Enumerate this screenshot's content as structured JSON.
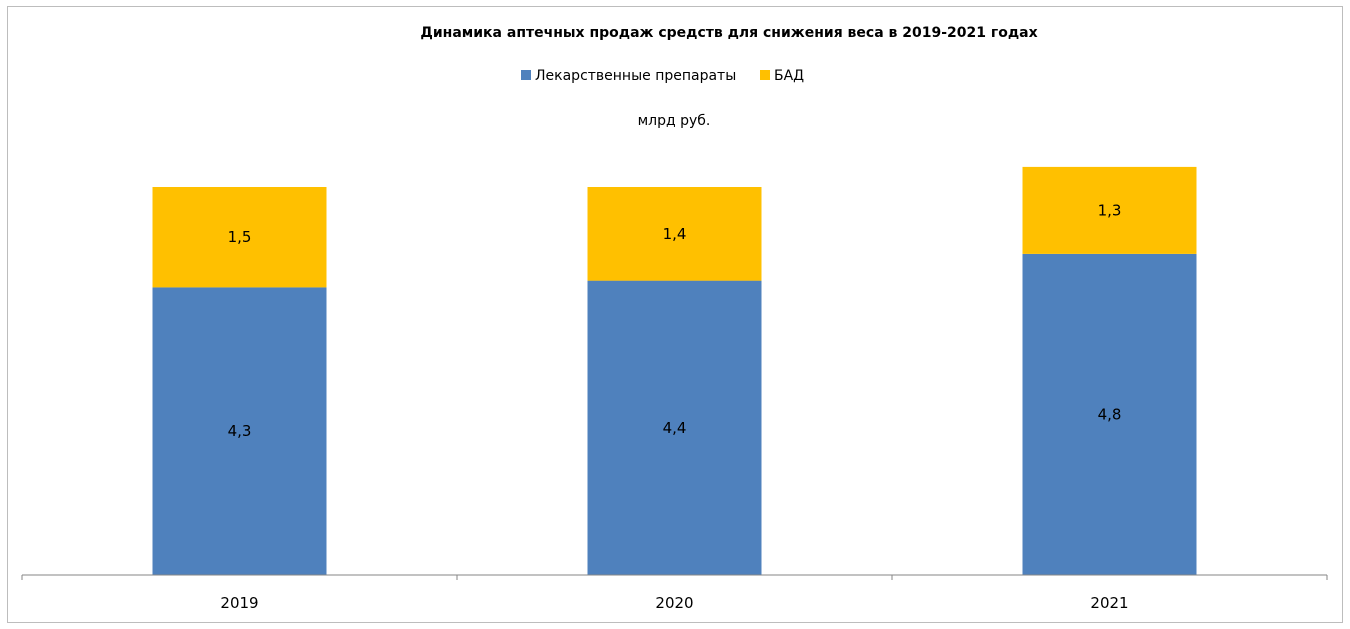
{
  "chart_data": {
    "type": "bar",
    "stacked": true,
    "title": "Динамика аптечных продаж средств для снижения веса в 2019-2021 годах",
    "unit_label": "млрд руб.",
    "categories": [
      "2019",
      "2020",
      "2021"
    ],
    "series": [
      {
        "name": "Лекарственные препараты",
        "values": [
          4.3,
          4.4,
          4.8
        ],
        "labels": [
          "4,3",
          "4,4",
          "4,8"
        ],
        "color": "#4f81bd"
      },
      {
        "name": "БАД",
        "values": [
          1.5,
          1.4,
          1.3
        ],
        "labels": [
          "1,5",
          "1,4",
          "1,3"
        ],
        "color": "#ffc000"
      }
    ],
    "ylim": [
      0,
      7
    ],
    "legend_position": "top",
    "grid": false
  }
}
